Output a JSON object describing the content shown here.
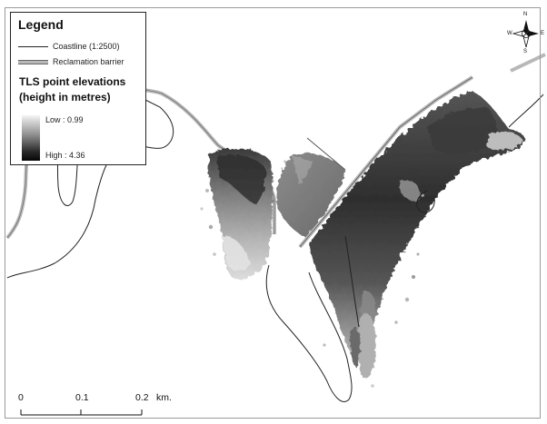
{
  "legend": {
    "title": "Legend",
    "coastline_label": "Coastline (1:2500)",
    "barrier_label": "Reclamation barrier",
    "elevation_heading_1": "TLS point elevations",
    "elevation_heading_2": "(height in metres)",
    "low_label": "Low : 0.99",
    "high_label": "High : 4.36"
  },
  "scale_bar": {
    "tick_0": "0",
    "tick_1": "0.1",
    "tick_2": "0.2",
    "unit": "km."
  },
  "north_arrow": {
    "n": "N",
    "s": "S",
    "e": "E",
    "w": "W"
  },
  "colors": {
    "barrier": "#b8b8b8",
    "coastline": "#222222",
    "elevation_low": "#f4f4f4",
    "elevation_high": "#050505"
  }
}
